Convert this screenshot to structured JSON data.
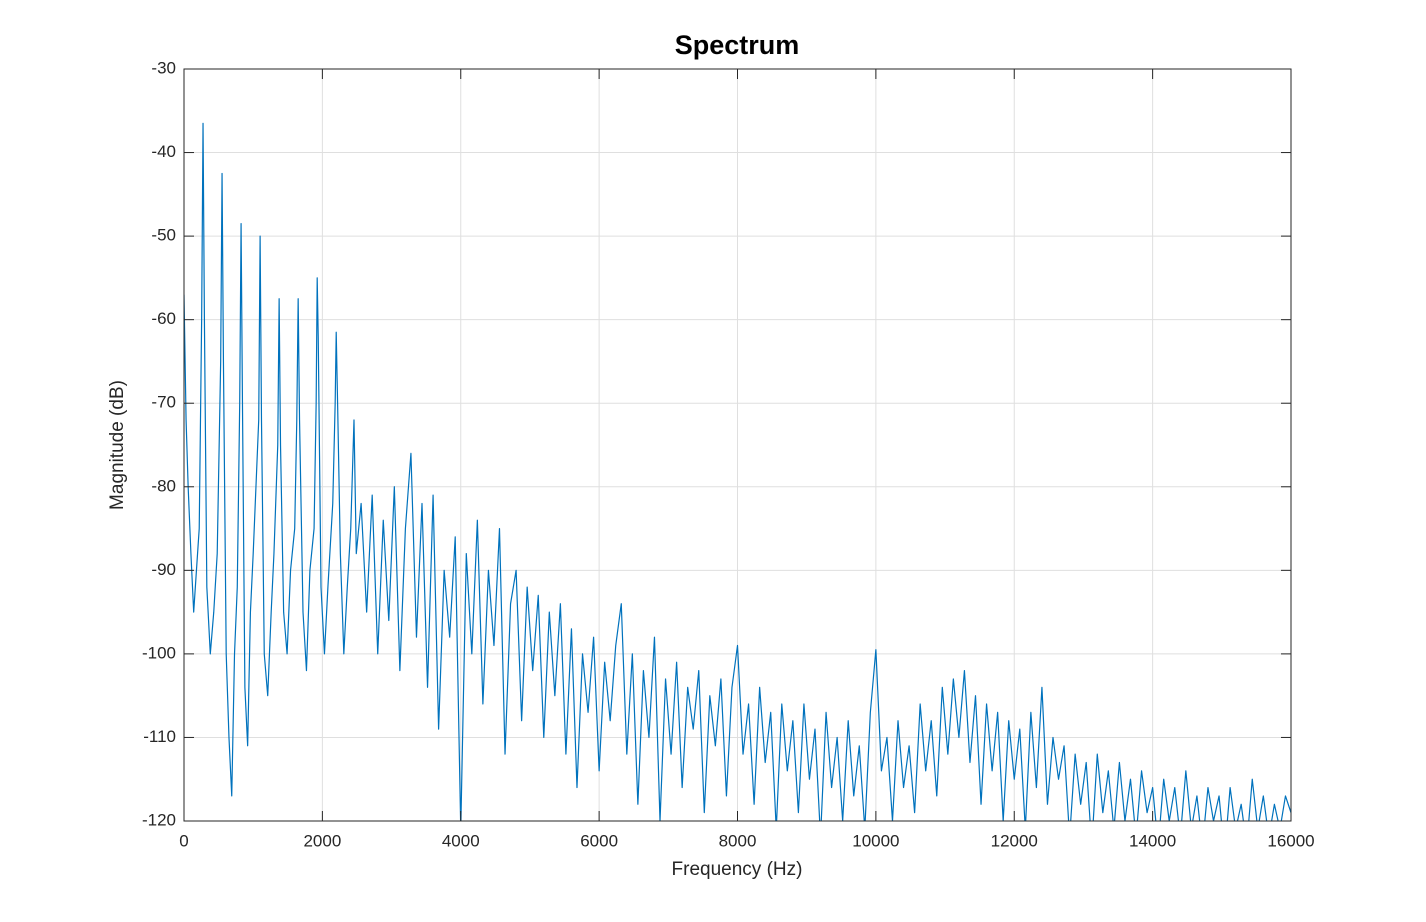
{
  "chart_data": {
    "type": "line",
    "title": "Spectrum",
    "x_label": "Frequency (Hz)",
    "y_label": "Magnitude (dB)",
    "color": "#0072bd",
    "grid": true,
    "xlim": [
      0,
      16000
    ],
    "xticks": [
      0,
      2000,
      4000,
      6000,
      8000,
      10000,
      12000,
      14000,
      16000
    ],
    "ylim": [
      -120,
      -30
    ],
    "yticks": [
      -120,
      -110,
      -100,
      -90,
      -80,
      -70,
      -60,
      -50,
      -40,
      -30
    ],
    "x": [
      0,
      30,
      60,
      100,
      140,
      180,
      220,
      255,
      275,
      295,
      330,
      380,
      430,
      480,
      530,
      550,
      570,
      610,
      650,
      690,
      730,
      770,
      805,
      825,
      845,
      880,
      920,
      960,
      1000,
      1080,
      1100,
      1120,
      1160,
      1210,
      1260,
      1300,
      1355,
      1375,
      1395,
      1440,
      1490,
      1540,
      1600,
      1630,
      1650,
      1670,
      1720,
      1770,
      1820,
      1880,
      1910,
      1925,
      1940,
      1980,
      2030,
      2080,
      2150,
      2185,
      2200,
      2220,
      2260,
      2310,
      2360,
      2410,
      2457,
      2490,
      2560,
      2640,
      2720,
      2800,
      2880,
      2960,
      3040,
      3120,
      3200,
      3280,
      3360,
      3440,
      3520,
      3600,
      3680,
      3760,
      3840,
      3920,
      4000,
      4080,
      4160,
      4240,
      4320,
      4400,
      4480,
      4560,
      4640,
      4720,
      4800,
      4880,
      4960,
      5040,
      5120,
      5200,
      5280,
      5360,
      5440,
      5520,
      5600,
      5680,
      5760,
      5840,
      5920,
      6000,
      6080,
      6160,
      6240,
      6320,
      6400,
      6480,
      6560,
      6640,
      6720,
      6800,
      6880,
      6960,
      7040,
      7120,
      7200,
      7280,
      7360,
      7440,
      7520,
      7600,
      7680,
      7760,
      7840,
      7920,
      8000,
      8080,
      8160,
      8240,
      8320,
      8400,
      8480,
      8560,
      8640,
      8720,
      8800,
      8880,
      8960,
      9040,
      9120,
      9200,
      9280,
      9360,
      9440,
      9520,
      9600,
      9680,
      9760,
      9840,
      9920,
      10000,
      10080,
      10160,
      10240,
      10320,
      10400,
      10480,
      10560,
      10640,
      10720,
      10800,
      10880,
      10960,
      11040,
      11120,
      11200,
      11280,
      11360,
      11440,
      11520,
      11600,
      11680,
      11760,
      11840,
      11920,
      12000,
      12080,
      12160,
      12240,
      12320,
      12400,
      12480,
      12560,
      12640,
      12720,
      12800,
      12880,
      12960,
      13040,
      13120,
      13200,
      13280,
      13360,
      13440,
      13520,
      13600,
      13680,
      13760,
      13840,
      13920,
      14000,
      14080,
      14160,
      14240,
      14320,
      14400,
      14480,
      14560,
      14640,
      14720,
      14800,
      14880,
      14960,
      15040,
      15120,
      15200,
      15280,
      15360,
      15440,
      15520,
      15600,
      15680,
      15760,
      15840,
      15920,
      16000
    ],
    "values": [
      -57,
      -72,
      -80,
      -88,
      -95,
      -90,
      -85,
      -60,
      -36.5,
      -60,
      -92,
      -100,
      -95,
      -88,
      -65,
      -42.5,
      -65,
      -100,
      -110,
      -117,
      -100,
      -92,
      -70,
      -48.5,
      -70,
      -104,
      -111,
      -95,
      -88,
      -72,
      -50,
      -72,
      -100,
      -105,
      -95,
      -88,
      -75,
      -57.5,
      -75,
      -95,
      -100,
      -90,
      -85,
      -72,
      -57.5,
      -72,
      -95,
      -102,
      -90,
      -85,
      -70,
      -55,
      -62,
      -92,
      -100,
      -92,
      -82,
      -70,
      -61.5,
      -70,
      -88,
      -100,
      -92,
      -85,
      -72,
      -88,
      -82,
      -95,
      -81,
      -100,
      -84,
      -96,
      -80,
      -102,
      -85,
      -76,
      -98,
      -82,
      -104,
      -81,
      -109,
      -90,
      -98,
      -86,
      -121,
      -88,
      -100,
      -84,
      -106,
      -90,
      -99,
      -85,
      -112,
      -94,
      -90,
      -108,
      -92,
      -102,
      -93,
      -110,
      -95,
      -105,
      -94,
      -112,
      -97,
      -116,
      -100,
      -107,
      -98,
      -114,
      -101,
      -108,
      -99,
      -94,
      -112,
      -100,
      -118,
      -102,
      -110,
      -98,
      -120,
      -103,
      -112,
      -101,
      -116,
      -104,
      -109,
      -102,
      -119,
      -105,
      -111,
      -103,
      -117,
      -104,
      -99,
      -112,
      -106,
      -118,
      -104,
      -113,
      -107,
      -121,
      -106,
      -114,
      -108,
      -119,
      -106,
      -115,
      -109,
      -122,
      -107,
      -116,
      -110,
      -120,
      -108,
      -117,
      -111,
      -121,
      -107,
      -99.5,
      -114,
      -110,
      -120,
      -108,
      -116,
      -111,
      -119,
      -106,
      -114,
      -108,
      -117,
      -104,
      -112,
      -103,
      -110,
      -102,
      -113,
      -105,
      -118,
      -106,
      -114,
      -107,
      -120,
      -108,
      -115,
      -109,
      -121,
      -107,
      -116,
      -104,
      -118,
      -110,
      -115,
      -111,
      -122,
      -112,
      -118,
      -113,
      -123,
      -112,
      -119,
      -114,
      -121,
      -113,
      -120,
      -115,
      -122,
      -114,
      -119,
      -116,
      -123,
      -115,
      -120,
      -116,
      -122,
      -114,
      -121,
      -117,
      -123,
      -116,
      -120,
      -117,
      -124,
      -116,
      -121,
      -118,
      -123,
      -115,
      -121,
      -117,
      -122,
      -118,
      -121,
      -117,
      -119
    ]
  }
}
